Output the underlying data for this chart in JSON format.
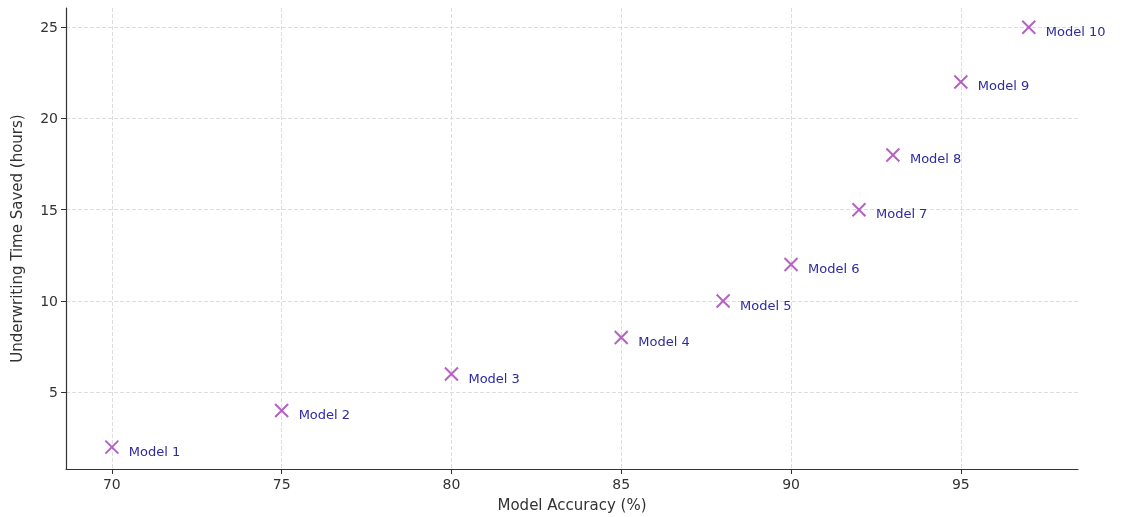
{
  "chart_data": {
    "type": "scatter",
    "xlabel": "Model Accuracy (%)",
    "ylabel": "Underwriting Time Saved (hours)",
    "x": [
      70,
      75,
      80,
      85,
      88,
      90,
      92,
      93,
      95,
      97
    ],
    "values": [
      2,
      4,
      6,
      8,
      10,
      12,
      15,
      18,
      22,
      25
    ],
    "color": "#a23cb4",
    "marker": "cross",
    "grid": true,
    "xlim": [
      68.65,
      98.45
    ],
    "xticks": [
      70,
      75,
      80,
      85,
      90,
      95
    ],
    "ylim": [
      0.8,
      26.05
    ],
    "yticks": [
      5,
      10,
      15,
      20,
      25
    ],
    "annotations": [
      {
        "text": "Model 1",
        "x": 70,
        "y": 2
      },
      {
        "text": "Model 2",
        "x": 75,
        "y": 4
      },
      {
        "text": "Model 3",
        "x": 80,
        "y": 6
      },
      {
        "text": "Model 4",
        "x": 85,
        "y": 8
      },
      {
        "text": "Model 5",
        "x": 88,
        "y": 10
      },
      {
        "text": "Model 6",
        "x": 90,
        "y": 12
      },
      {
        "text": "Model 7",
        "x": 92,
        "y": 15
      },
      {
        "text": "Model 8",
        "x": 93,
        "y": 18
      },
      {
        "text": "Model 9",
        "x": 95,
        "y": 22
      },
      {
        "text": "Model 10",
        "x": 97,
        "y": 25
      }
    ]
  }
}
